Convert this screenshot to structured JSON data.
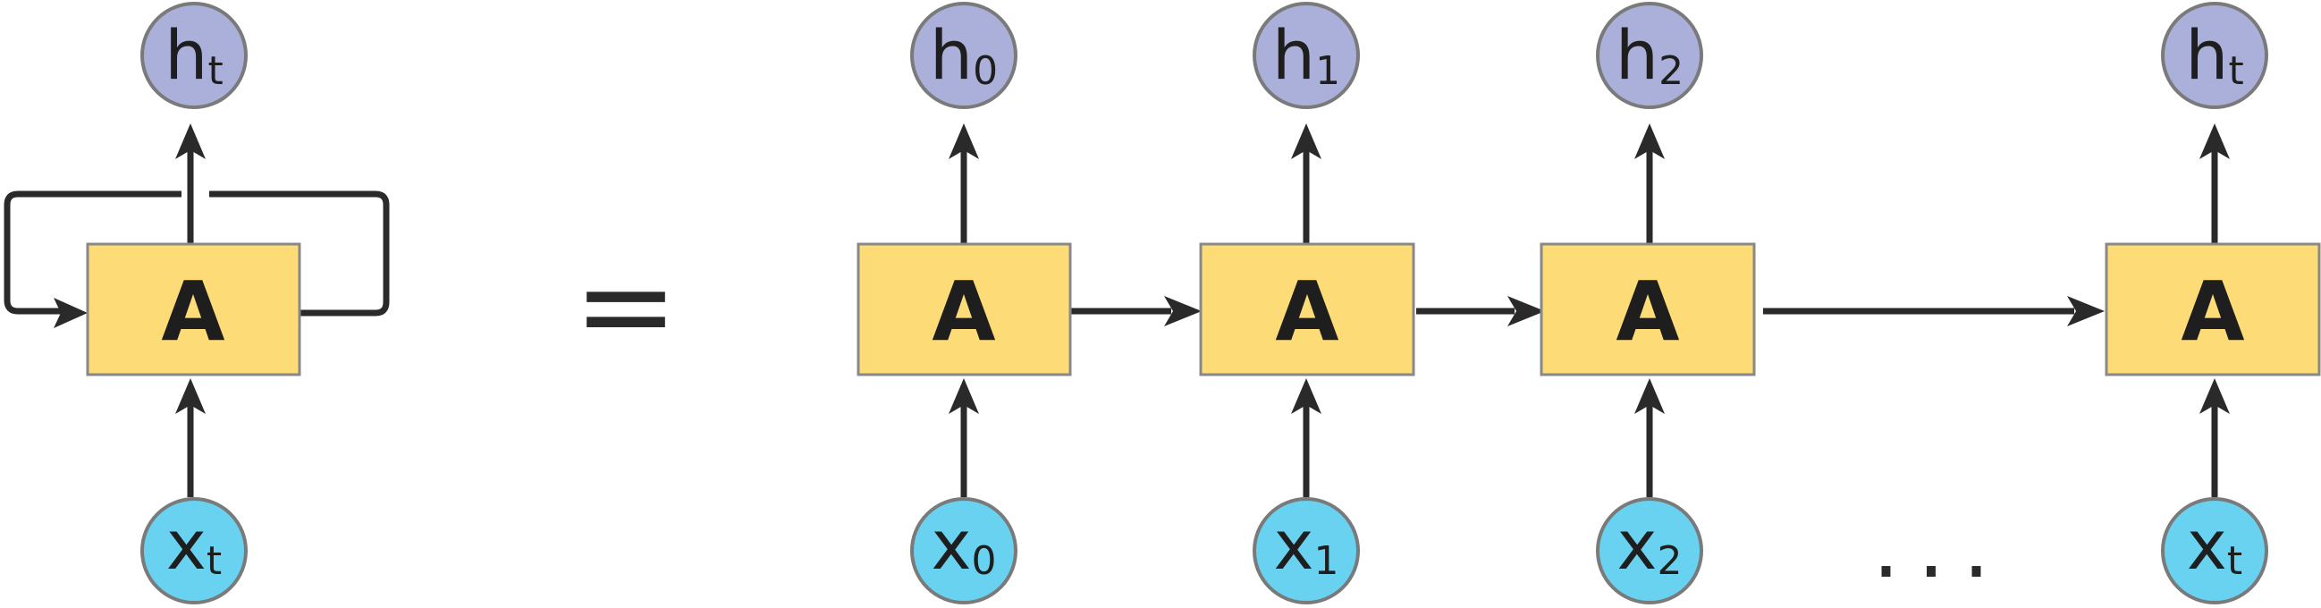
{
  "colors": {
    "cell": "#fddc78",
    "output_node": "#aab0d9",
    "input_node": "#68d2f0",
    "line": "#2a2a2a"
  },
  "folded": {
    "cell_label": "A",
    "output": {
      "base": "h",
      "sub": "t"
    },
    "input": {
      "base": "x",
      "sub": "t"
    }
  },
  "equals": "=",
  "unrolled": [
    {
      "cell_label": "A",
      "output": {
        "base": "h",
        "sub": "0"
      },
      "input": {
        "base": "x",
        "sub": "0"
      }
    },
    {
      "cell_label": "A",
      "output": {
        "base": "h",
        "sub": "1"
      },
      "input": {
        "base": "x",
        "sub": "1"
      }
    },
    {
      "cell_label": "A",
      "output": {
        "base": "h",
        "sub": "2"
      },
      "input": {
        "base": "x",
        "sub": "2"
      }
    },
    {
      "cell_label": "A",
      "output": {
        "base": "h",
        "sub": "t"
      },
      "input": {
        "base": "x",
        "sub": "t"
      }
    }
  ],
  "ellipsis": "..."
}
